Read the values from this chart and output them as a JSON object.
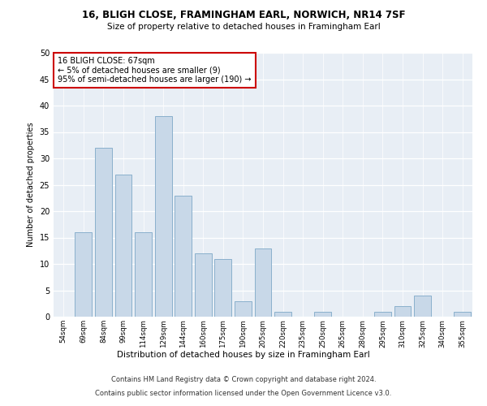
{
  "title1": "16, BLIGH CLOSE, FRAMINGHAM EARL, NORWICH, NR14 7SF",
  "title2": "Size of property relative to detached houses in Framingham Earl",
  "xlabel": "Distribution of detached houses by size in Framingham Earl",
  "ylabel": "Number of detached properties",
  "categories": [
    "54sqm",
    "69sqm",
    "84sqm",
    "99sqm",
    "114sqm",
    "129sqm",
    "144sqm",
    "160sqm",
    "175sqm",
    "190sqm",
    "205sqm",
    "220sqm",
    "235sqm",
    "250sqm",
    "265sqm",
    "280sqm",
    "295sqm",
    "310sqm",
    "325sqm",
    "340sqm",
    "355sqm"
  ],
  "values": [
    0,
    16,
    32,
    27,
    16,
    38,
    23,
    12,
    11,
    3,
    13,
    1,
    0,
    1,
    0,
    0,
    1,
    2,
    4,
    0,
    1
  ],
  "bar_color": "#c8d8e8",
  "bar_edge_color": "#8ab0cc",
  "annotation_text": "16 BLIGH CLOSE: 67sqm\n← 5% of detached houses are smaller (9)\n95% of semi-detached houses are larger (190) →",
  "annotation_box_color": "#ffffff",
  "annotation_box_edge_color": "#cc0000",
  "footer1": "Contains HM Land Registry data © Crown copyright and database right 2024.",
  "footer2": "Contains public sector information licensed under the Open Government Licence v3.0.",
  "ylim": [
    0,
    50
  ],
  "plot_background": "#e8eef5"
}
